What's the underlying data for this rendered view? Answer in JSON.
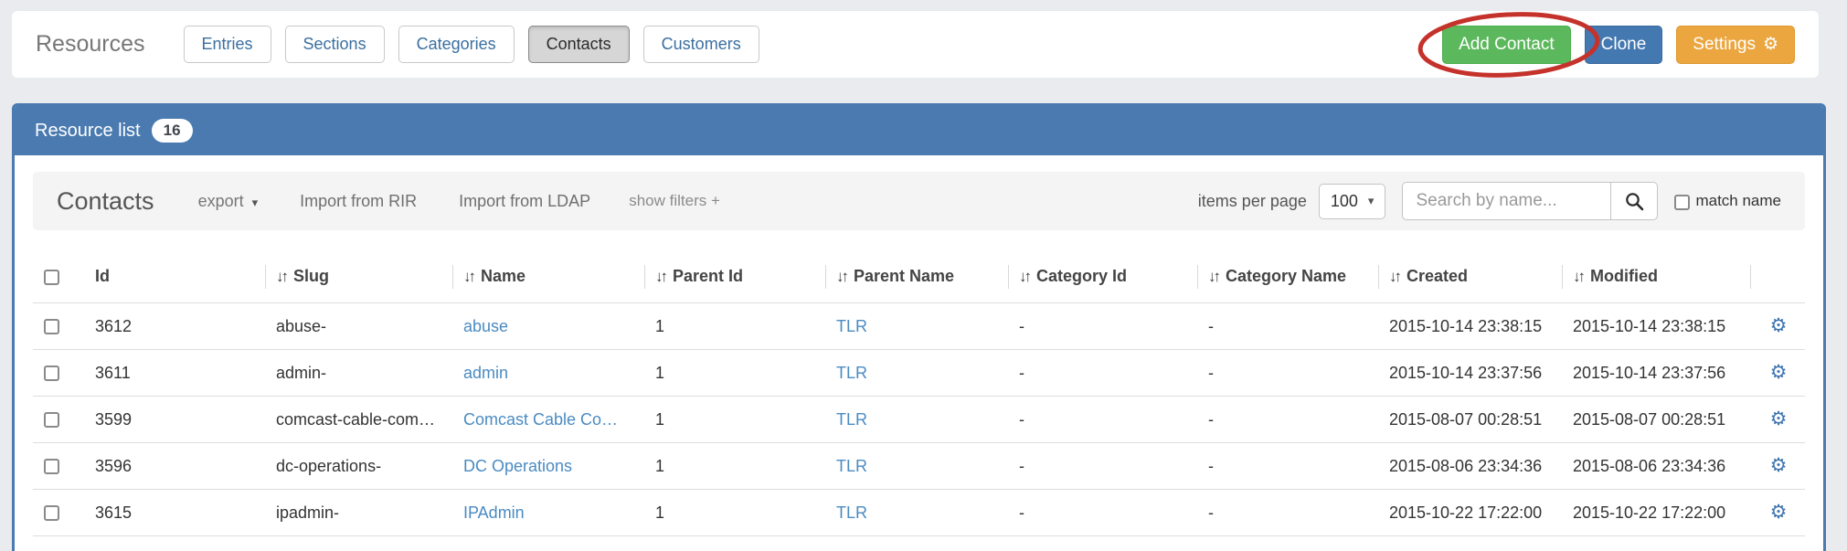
{
  "page": {
    "title": "Resources"
  },
  "tabs": [
    {
      "label": "Entries",
      "active": false
    },
    {
      "label": "Sections",
      "active": false
    },
    {
      "label": "Categories",
      "active": false
    },
    {
      "label": "Contacts",
      "active": true
    },
    {
      "label": "Customers",
      "active": false
    }
  ],
  "header_actions": {
    "add_contact_label": "Add Contact",
    "clone_label": "Clone",
    "settings_label": "Settings"
  },
  "annotation": {
    "type": "hand-drawn-ellipse",
    "around": "Add Contact button",
    "color": "#c5322b"
  },
  "panel": {
    "title": "Resource list",
    "count_badge": "16"
  },
  "toolbar": {
    "title": "Contacts",
    "export_label": "export",
    "import_rir_label": "Import from RIR",
    "import_ldap_label": "Import from LDAP",
    "show_filters_label": "show filters +",
    "items_per_page_label": "items per page",
    "items_per_page_value": "100",
    "search_placeholder": "Search by name...",
    "match_name_label": "match name",
    "match_name_checked": false
  },
  "table": {
    "headers": [
      {
        "key": "id",
        "label": "Id",
        "sortable": false
      },
      {
        "key": "slug",
        "label": "Slug",
        "sortable": true
      },
      {
        "key": "name",
        "label": "Name",
        "sortable": true
      },
      {
        "key": "parent_id",
        "label": "Parent Id",
        "sortable": true
      },
      {
        "key": "parent_name",
        "label": "Parent Name",
        "sortable": true
      },
      {
        "key": "category_id",
        "label": "Category Id",
        "sortable": true
      },
      {
        "key": "category_name",
        "label": "Category Name",
        "sortable": true
      },
      {
        "key": "created",
        "label": "Created",
        "sortable": true
      },
      {
        "key": "modified",
        "label": "Modified",
        "sortable": true
      }
    ],
    "rows": [
      {
        "id": "3612",
        "slug": "abuse-",
        "name": "abuse",
        "parent_id": "1",
        "parent_name": "TLR",
        "category_id": "-",
        "category_name": "-",
        "created": "2015-10-14 23:38:15",
        "modified": "2015-10-14 23:38:15"
      },
      {
        "id": "3611",
        "slug": "admin-",
        "name": "admin",
        "parent_id": "1",
        "parent_name": "TLR",
        "category_id": "-",
        "category_name": "-",
        "created": "2015-10-14 23:37:56",
        "modified": "2015-10-14 23:37:56"
      },
      {
        "id": "3599",
        "slug": "comcast-cable-com…",
        "name": "Comcast Cable Co…",
        "parent_id": "1",
        "parent_name": "TLR",
        "category_id": "-",
        "category_name": "-",
        "created": "2015-08-07 00:28:51",
        "modified": "2015-08-07 00:28:51"
      },
      {
        "id": "3596",
        "slug": "dc-operations-",
        "name": "DC Operations",
        "parent_id": "1",
        "parent_name": "TLR",
        "category_id": "-",
        "category_name": "-",
        "created": "2015-08-06 23:34:36",
        "modified": "2015-08-06 23:34:36"
      },
      {
        "id": "3615",
        "slug": "ipadmin-",
        "name": "IPAdmin",
        "parent_id": "1",
        "parent_name": "TLR",
        "category_id": "-",
        "category_name": "-",
        "created": "2015-10-22 17:22:00",
        "modified": "2015-10-22 17:22:00"
      }
    ]
  },
  "icons": {
    "sort": "↓↑",
    "caret": "▾",
    "gear": "⚙",
    "search": "magnifier"
  },
  "colors": {
    "panel_blue": "#4a7ab0",
    "button_green": "#5cb85c",
    "button_blue": "#4478b1",
    "button_orange": "#eba63f",
    "annotation_red": "#c5322b",
    "link_blue": "#4a8bc2",
    "page_background": "#e9ebee"
  }
}
